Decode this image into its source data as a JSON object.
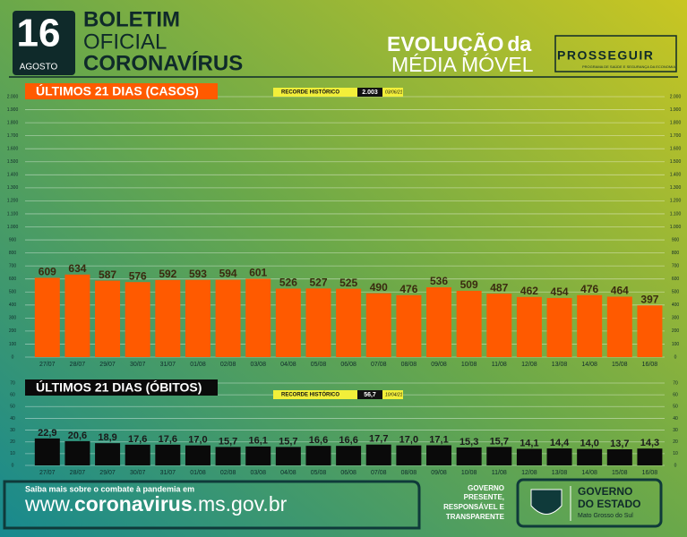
{
  "header": {
    "day": "16",
    "month": "AGOSTO",
    "line1": "BOLETIM",
    "line2": "OFICIAL",
    "line3": "CORONAVÍRUS",
    "evolution": "EVOLUÇÃO",
    "evolution_suffix": "da",
    "moving_average": "MÉDIA MÓVEL",
    "program": "PROSSEGUIR",
    "program_sub": "PROGRAMA DE SAÚDE E SEGURANÇA DA ECONOMIA"
  },
  "chart_data": [
    {
      "type": "bar",
      "title": "ÚLTIMOS 21 DIAS (CASOS)",
      "record_label": "RECORDE HISTÓRICO",
      "record_value": "2.003",
      "record_date": "03/06/21",
      "color": "#ff5a00",
      "label_color": "#3a2a10",
      "categories": [
        "27/07",
        "28/07",
        "29/07",
        "30/07",
        "31/07",
        "01/08",
        "02/08",
        "03/08",
        "04/08",
        "05/08",
        "06/08",
        "07/08",
        "08/08",
        "09/08",
        "10/08",
        "11/08",
        "12/08",
        "13/08",
        "14/08",
        "15/08",
        "16/08"
      ],
      "values": [
        609,
        634,
        587,
        576,
        592,
        593,
        594,
        601,
        526,
        527,
        525,
        490,
        476,
        536,
        509,
        487,
        462,
        454,
        476,
        464,
        397
      ],
      "ylim": [
        0,
        2000
      ],
      "yticks": [
        0,
        100,
        200,
        300,
        400,
        500,
        600,
        700,
        800,
        900,
        {
          "value": 1000,
          "label": "1.000"
        },
        {
          "value": 1100,
          "label": "1.100"
        },
        {
          "value": 1200,
          "label": "1.200"
        },
        {
          "value": 1300,
          "label": "1.300"
        },
        {
          "value": 1400,
          "label": "1.400"
        },
        {
          "value": 1500,
          "label": "1.500"
        },
        {
          "value": 1600,
          "label": "1.600"
        },
        {
          "value": 1700,
          "label": "1.700"
        },
        {
          "value": 1800,
          "label": "1.800"
        },
        {
          "value": 1900,
          "label": "1.900"
        },
        {
          "value": 2000,
          "label": "2.000"
        }
      ],
      "grid": true
    },
    {
      "type": "bar",
      "title": "ÚLTIMOS 21 DIAS (ÓBITOS)",
      "record_label": "RECORDE HISTÓRICO",
      "record_value": "56,7",
      "record_date": "10/04/21",
      "color": "#0a0a0a",
      "label_color": "#1a1a1a",
      "categories": [
        "27/07",
        "28/07",
        "29/07",
        "30/07",
        "31/07",
        "01/08",
        "02/08",
        "03/08",
        "04/08",
        "05/08",
        "06/08",
        "07/08",
        "08/08",
        "09/08",
        "10/08",
        "11/08",
        "12/08",
        "13/08",
        "14/08",
        "15/08",
        "16/08"
      ],
      "values": [
        22.9,
        20.6,
        18.9,
        17.6,
        17.6,
        17.0,
        15.7,
        16.1,
        15.7,
        16.6,
        16.6,
        17.7,
        17.0,
        17.1,
        15.3,
        15.7,
        14.1,
        14.4,
        14.0,
        13.7,
        14.3
      ],
      "value_labels": [
        "22,9",
        "20,6",
        "18,9",
        "17,6",
        "17,6",
        "17,0",
        "15,7",
        "16,1",
        "15,7",
        "16,6",
        "16,6",
        "17,7",
        "17,0",
        "17,1",
        "15,3",
        "15,7",
        "14,1",
        "14,4",
        "14,0",
        "13,7",
        "14,3"
      ],
      "ylim": [
        0,
        70
      ],
      "yticks": [
        0,
        10,
        20,
        30,
        40,
        50,
        60,
        70
      ],
      "grid": true
    }
  ],
  "footer": {
    "info": "Saiba mais sobre o combate à pandemia em",
    "url_prefix": "www.",
    "url_main": "coronavirus",
    "url_suffix": ".ms.gov.br",
    "motto1": "GOVERNO",
    "motto2": "PRESENTE,",
    "motto3": "RESPONSÁVEL E",
    "motto4": "TRANSPARENTE",
    "gov1": "GOVERNO",
    "gov2": "DO ESTADO",
    "state": "Mato Grosso do Sul"
  }
}
